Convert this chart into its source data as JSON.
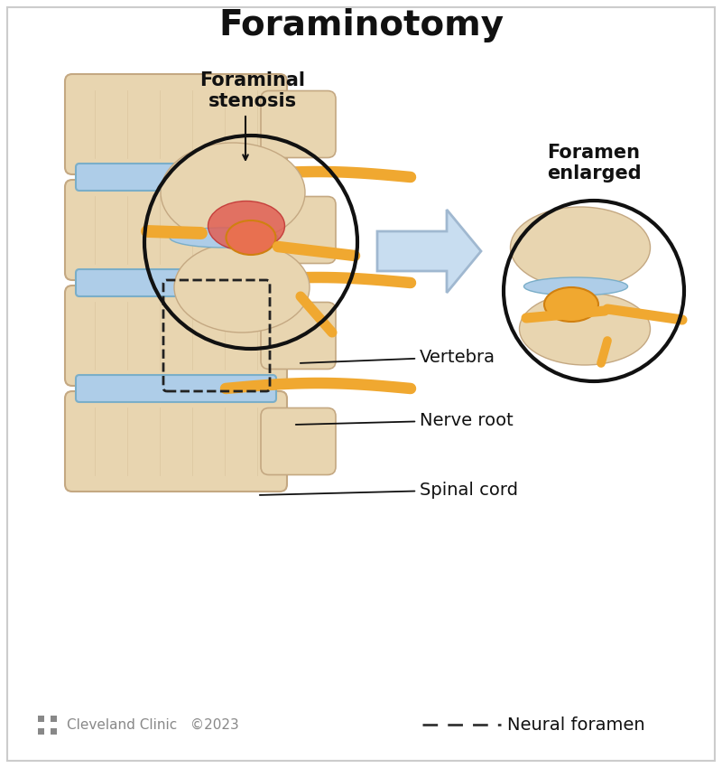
{
  "title": "Foraminotomy",
  "title_fontsize": 28,
  "title_fontweight": "bold",
  "label_foraminal_stenosis": "Foraminal\nstenosis",
  "label_foramen_enlarged": "Foramen\nenlarged",
  "label_vertebra": "Vertebra",
  "label_nerve_root": "Nerve root",
  "label_spinal_cord": "Spinal cord",
  "label_neural_foramen": "Neural foramen",
  "label_cleveland": "Cleveland Clinic   ©2023",
  "bg_color": "#ffffff",
  "vertebra_color": "#e8d5b0",
  "vertebra_edge": "#c4a882",
  "disc_color": "#aecde8",
  "disc_edge": "#7aaec8",
  "nerve_color": "#f0a830",
  "nerve_edge": "#d08010",
  "inflamed_color": "#e87050",
  "stenosis_red": "#d04030",
  "arrow_color": "#c8ddf0",
  "arrow_edge": "#a0b8d0",
  "circle_edge": "#111111",
  "label_fontsize": 14,
  "annotation_fontsize": 14,
  "gray_color": "#888888"
}
